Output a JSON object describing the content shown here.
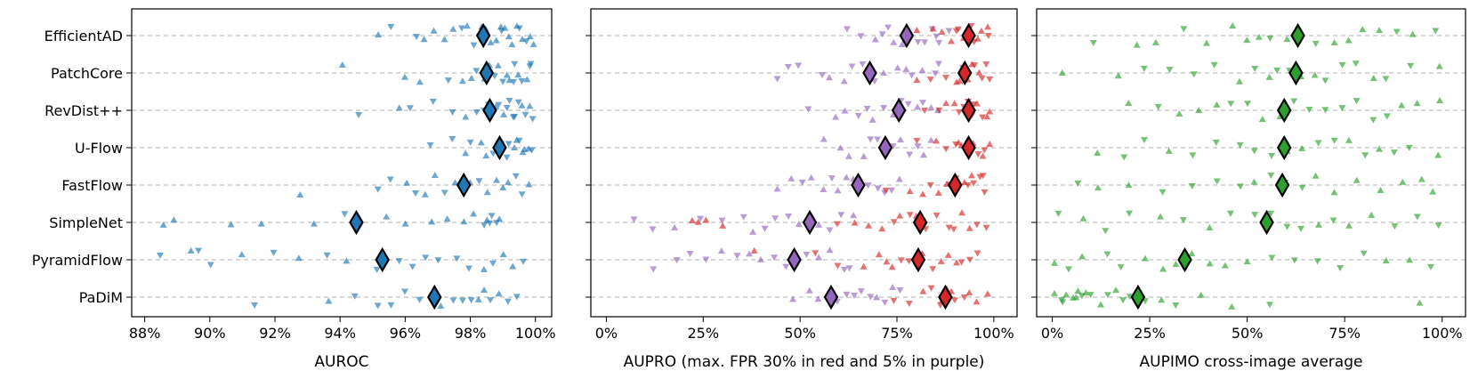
{
  "chart_data": [
    {
      "type": "scatter",
      "xlabel": "AUROC",
      "xlim": [
        87.6,
        100.5
      ],
      "xticks": [
        88,
        90,
        92,
        94,
        96,
        98,
        100
      ],
      "xtick_labels": [
        "88%",
        "90%",
        "92%",
        "94%",
        "96%",
        "98%",
        "100%"
      ],
      "categories": [
        "EfficientAD",
        "PatchCore",
        "RevDist++",
        "U-Flow",
        "FastFlow",
        "SimpleNet",
        "PyramidFlow",
        "PaDiM"
      ],
      "grid": "horizontal dashed",
      "series": [
        {
          "color": "#1f77b4",
          "means": [
            98.4,
            98.5,
            98.6,
            98.9,
            97.8,
            94.5,
            95.3,
            96.9
          ],
          "points": [
            [
              95.2,
              95.6,
              96.3,
              96.6,
              96.9,
              97.2,
              97.5,
              97.7,
              97.9,
              98.1,
              98.3,
              98.5,
              98.6,
              98.8,
              98.9,
              99.0,
              99.1,
              99.2,
              99.3,
              99.4,
              99.5,
              99.6,
              99.7,
              99.8,
              99.9
            ],
            [
              94.1,
              96.0,
              96.4,
              97.3,
              97.8,
              98.0,
              98.2,
              98.4,
              98.6,
              98.7,
              98.9,
              99.0,
              99.1,
              99.2,
              99.3,
              99.4,
              99.5,
              99.6,
              99.7,
              99.8,
              99.9
            ],
            [
              94.6,
              95.8,
              96.1,
              96.9,
              97.4,
              97.9,
              98.2,
              98.4,
              98.6,
              98.8,
              98.9,
              99.0,
              99.1,
              99.2,
              99.3,
              99.4,
              99.5,
              99.6,
              99.7,
              99.8,
              99.9
            ],
            [
              96.8,
              97.4,
              97.8,
              98.0,
              98.3,
              98.5,
              98.7,
              98.9,
              99.0,
              99.1,
              99.2,
              99.3,
              99.4,
              99.5,
              99.6,
              99.7,
              99.8,
              99.9
            ],
            [
              92.8,
              95.2,
              95.6,
              96.0,
              96.3,
              96.6,
              96.9,
              97.2,
              97.5,
              97.8,
              98.0,
              98.3,
              98.5,
              98.8,
              99.0,
              99.2,
              99.4,
              99.6,
              99.8
            ],
            [
              88.6,
              88.9,
              90.7,
              91.6,
              93.2,
              94.1,
              95.4,
              96.0,
              96.8,
              97.3,
              97.8,
              98.1,
              98.4,
              98.5,
              98.6,
              98.7,
              98.8,
              98.9
            ],
            [
              88.5,
              89.4,
              89.7,
              90.0,
              91.0,
              92.0,
              92.7,
              93.6,
              94.2,
              95.1,
              95.8,
              96.2,
              96.6,
              97.0,
              97.6,
              98.0,
              98.4,
              98.7,
              99.0,
              99.3,
              99.6
            ],
            [
              91.4,
              93.6,
              94.5,
              95.2,
              95.6,
              96.0,
              96.4,
              97.1,
              97.5,
              97.8,
              98.0,
              98.2,
              98.4,
              98.6,
              98.9,
              99.2,
              99.4
            ]
          ]
        }
      ]
    },
    {
      "type": "scatter",
      "xlabel": "AUPRO (max. FPR 30% in red and 5% in purple)",
      "xlim": [
        -4,
        106
      ],
      "xticks": [
        0,
        25,
        50,
        75,
        100
      ],
      "xtick_labels": [
        "0%",
        "25%",
        "50%",
        "75%",
        "100%"
      ],
      "categories": [
        "EfficientAD",
        "PatchCore",
        "RevDist++",
        "U-Flow",
        "FastFlow",
        "SimpleNet",
        "PyramidFlow",
        "PaDiM"
      ],
      "grid": "horizontal dashed",
      "series": [
        {
          "color": "#9467bd",
          "means": [
            77.5,
            68,
            75.5,
            72,
            65,
            52.5,
            48.5,
            58
          ],
          "points": [
            [
              62,
              66,
              69,
              71,
              73,
              74,
              76,
              78,
              80,
              82,
              84,
              85,
              86,
              88
            ],
            [
              44,
              47,
              50,
              56,
              58,
              61,
              63,
              66,
              69,
              72,
              75,
              77,
              79,
              82,
              85,
              86
            ],
            [
              52,
              59,
              62,
              65,
              67,
              69,
              72,
              74,
              76,
              78,
              80,
              82,
              84,
              86
            ],
            [
              56,
              60,
              63,
              66,
              68,
              70,
              72,
              74,
              76,
              78,
              80,
              82,
              84
            ],
            [
              44,
              48,
              51,
              53,
              56,
              58,
              60,
              62,
              64,
              66,
              68,
              70,
              72,
              74,
              76
            ],
            [
              7,
              12,
              18,
              24,
              30,
              35,
              38,
              41,
              44,
              47,
              50,
              53,
              55,
              58,
              61,
              64
            ],
            [
              12,
              18,
              22,
              26,
              30,
              34,
              37,
              40,
              43,
              46,
              49,
              52,
              55,
              58,
              61,
              63
            ],
            [
              48,
              52,
              55,
              58,
              60,
              62,
              64,
              66,
              68,
              70,
              72,
              74,
              76
            ]
          ]
        },
        {
          "color": "#d62728",
          "means": [
            93.5,
            92.5,
            93.5,
            93.5,
            90,
            81,
            80.5,
            87.5
          ],
          "points": [
            [
              80,
              84,
              87,
              89,
              90,
              91,
              92,
              93,
              94,
              95,
              96,
              97,
              98,
              98.5
            ],
            [
              80,
              84,
              88,
              90,
              91,
              92,
              93,
              94,
              95,
              96,
              97,
              98,
              98.5
            ],
            [
              82,
              86,
              88,
              90,
              91,
              92,
              93,
              94,
              95,
              96,
              97,
              98,
              98.5
            ],
            [
              80,
              85,
              88,
              90,
              91,
              92,
              93,
              94,
              95,
              96,
              97,
              98,
              98.5
            ],
            [
              72,
              78,
              82,
              84,
              86,
              88,
              89,
              90,
              92,
              93,
              94,
              95,
              96,
              97,
              98
            ],
            [
              22,
              24,
              26,
              30,
              60,
              64,
              68,
              71,
              74,
              76,
              78,
              80,
              82,
              85,
              88,
              90,
              92,
              94,
              96,
              98
            ],
            [
              38,
              54,
              60,
              66,
              70,
              72,
              74,
              76,
              78,
              80,
              82,
              84,
              86,
              88,
              90,
              92,
              94,
              96
            ],
            [
              74,
              78,
              82,
              84,
              86,
              87,
              88,
              89,
              90,
              92,
              94,
              96,
              98
            ]
          ]
        }
      ]
    },
    {
      "type": "scatter",
      "xlabel": "AUPIMO cross-image average",
      "xlim": [
        -4,
        106
      ],
      "xticks": [
        0,
        25,
        50,
        75,
        100
      ],
      "xtick_labels": [
        "0%",
        "25%",
        "50%",
        "75%",
        "100%"
      ],
      "categories": [
        "EfficientAD",
        "PatchCore",
        "RevDist++",
        "U-Flow",
        "FastFlow",
        "SimpleNet",
        "PyramidFlow",
        "PaDiM"
      ],
      "grid": "horizontal dashed",
      "series": [
        {
          "color": "#2ca02c",
          "means": [
            63,
            62.5,
            59.5,
            59.5,
            59,
            55,
            34,
            22
          ],
          "points": [
            [
              11,
              22,
              27,
              34,
              40,
              46,
              50,
              53,
              56,
              60,
              64,
              68,
              72,
              76,
              80,
              84,
              88,
              92,
              98
            ],
            [
              3,
              17,
              24,
              30,
              36,
              42,
              48,
              52,
              56,
              58,
              61,
              64,
              67,
              70,
              74,
              78,
              82,
              86,
              92,
              99
            ],
            [
              20,
              27,
              33,
              38,
              42,
              46,
              50,
              54,
              58,
              62,
              66,
              70,
              74,
              78,
              82,
              86,
              90,
              94,
              99
            ],
            [
              12,
              18,
              24,
              30,
              36,
              42,
              48,
              52,
              56,
              60,
              64,
              68,
              72,
              76,
              80,
              84,
              88,
              92,
              99
            ],
            [
              7,
              12,
              20,
              28,
              36,
              42,
              48,
              52,
              56,
              60,
              64,
              68,
              72,
              78,
              84,
              90,
              95,
              98
            ],
            [
              2,
              8,
              14,
              20,
              28,
              34,
              40,
              46,
              52,
              56,
              60,
              64,
              68,
              72,
              76,
              82,
              88,
              94,
              99
            ],
            [
              1,
              4,
              8,
              14,
              18,
              24,
              28,
              32,
              36,
              40,
              44,
              50,
              56,
              62,
              68,
              74,
              80,
              86,
              92,
              97
            ],
            [
              1,
              2,
              3,
              4,
              5,
              6,
              7,
              8,
              9,
              10,
              12,
              14,
              16,
              18,
              20,
              24,
              28,
              32,
              38,
              46,
              56,
              94
            ]
          ]
        }
      ]
    }
  ]
}
